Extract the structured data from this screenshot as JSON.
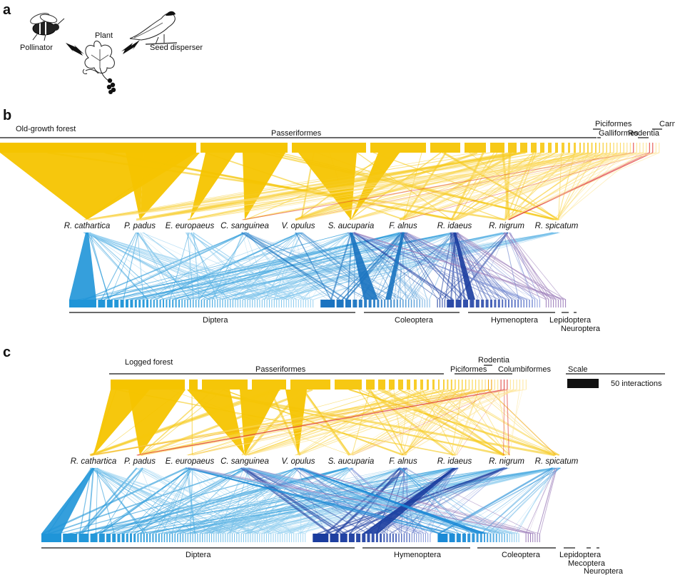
{
  "panels": {
    "a": {
      "letter": "a",
      "plant_label": "Plant",
      "pollinator_label": "Pollinator",
      "disperser_label": "Seed disperser",
      "icons": [
        "bee-icon",
        "bird-icon",
        "plant-icon"
      ]
    },
    "b": {
      "letter": "b",
      "title": "Old-growth forest",
      "plants": [
        "R. cathartica",
        "P. padus",
        "E. europaeus",
        "C. sanguinea",
        "V. opulus",
        "S. aucuparia",
        "F. alnus",
        "R. idaeus",
        "R. nigrum",
        "R. spicatum"
      ],
      "disperser_orders": [
        "Passeriformes",
        "Galliformes",
        "Piciformes",
        "Rodentia",
        "Carnivora"
      ],
      "pollinator_orders": [
        "Diptera",
        "Coleoptera",
        "Hymenoptera",
        "Lepidoptera",
        "Neuroptera"
      ]
    },
    "c": {
      "letter": "c",
      "title": "Logged forest",
      "plants": [
        "R. cathartica",
        "P. padus",
        "E. europaeus",
        "C. sanguinea",
        "V. opulus",
        "S. aucuparia",
        "F. alnus",
        "R. idaeus",
        "R. nigrum",
        "R. spicatum"
      ],
      "disperser_orders": [
        "Passeriformes",
        "Piciformes",
        "Rodentia",
        "Columbiformes"
      ],
      "pollinator_orders": [
        "Diptera",
        "Hymenoptera",
        "Coleoptera",
        "Lepidoptera",
        "Mecoptera",
        "Neuroptera"
      ],
      "scale_title": "Scale",
      "scale_label": "50 interactions",
      "scale_value": 50
    }
  },
  "colors": {
    "disperser": "#f5c400",
    "red_order": "#e0403a",
    "pollinator_light": "#2aa0e0",
    "pollinator_dark": "#1a3c9e",
    "text": "#111111"
  }
}
